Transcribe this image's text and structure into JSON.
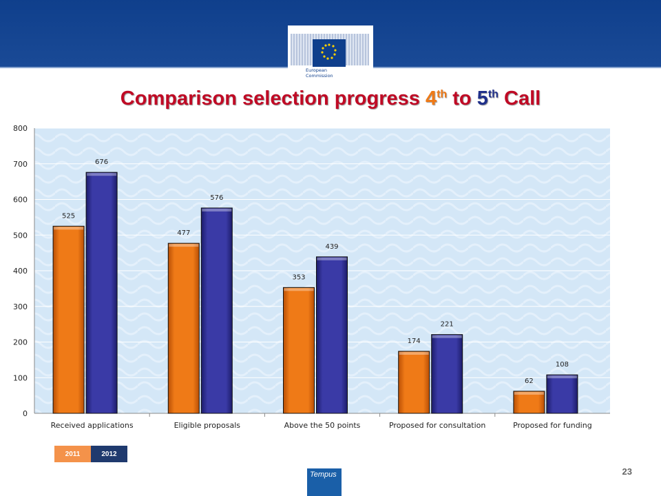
{
  "slide": {
    "title_prefix": "Comparison selection progress ",
    "title_num1": "4",
    "title_sup1": "th",
    "title_mid": " to ",
    "title_num2": "5",
    "title_sup2": "th",
    "title_suffix": " Call",
    "page_number": "23",
    "logo_text_line1": "European",
    "logo_text_line2": "Commission",
    "tempus_label": "Tempus"
  },
  "colors": {
    "banner": "#0f3f8c",
    "title": "#c00a25",
    "orange": "#ef7a17",
    "navy": "#20308a"
  },
  "legend": [
    {
      "label": "2011",
      "color": "#f4924a"
    },
    {
      "label": "2012",
      "color": "#1f3a6e"
    }
  ],
  "chart_data": {
    "type": "bar",
    "categories": [
      "Received applications",
      "Eligible proposals",
      "Above the 50 points",
      "Proposed for consultation",
      "Proposed for funding"
    ],
    "series": [
      {
        "name": "2011",
        "values": [
          525,
          477,
          353,
          174,
          62
        ],
        "color": "#ef7a17"
      },
      {
        "name": "2012",
        "values": [
          676,
          576,
          439,
          221,
          108
        ],
        "color": "#3a3aa6"
      }
    ],
    "ylim": [
      0,
      800
    ],
    "yticks": [
      0,
      100,
      200,
      300,
      400,
      500,
      600,
      700,
      800
    ],
    "grid": true,
    "legend_position": "bottom-left"
  }
}
